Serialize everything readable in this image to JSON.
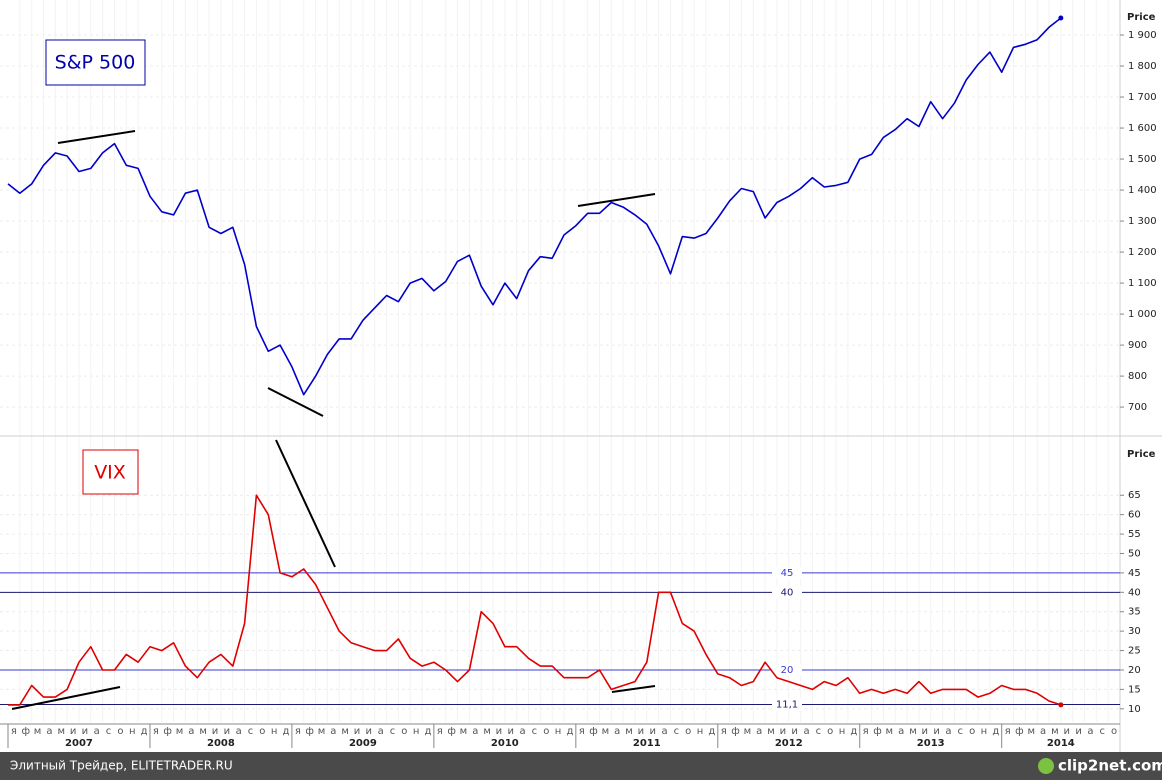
{
  "chart_data": [
    {
      "type": "line",
      "x": [
        "2007-01",
        "2007-02",
        "2007-03",
        "2007-04",
        "2007-05",
        "2007-06",
        "2007-07",
        "2007-08",
        "2007-09",
        "2007-10",
        "2007-11",
        "2007-12",
        "2008-01",
        "2008-02",
        "2008-03",
        "2008-04",
        "2008-05",
        "2008-06",
        "2008-07",
        "2008-08",
        "2008-09",
        "2008-10",
        "2008-11",
        "2008-12",
        "2009-01",
        "2009-02",
        "2009-03",
        "2009-04",
        "2009-05",
        "2009-06",
        "2009-07",
        "2009-08",
        "2009-09",
        "2009-10",
        "2009-11",
        "2009-12",
        "2010-01",
        "2010-02",
        "2010-03",
        "2010-04",
        "2010-05",
        "2010-06",
        "2010-07",
        "2010-08",
        "2010-09",
        "2010-10",
        "2010-11",
        "2010-12",
        "2011-01",
        "2011-02",
        "2011-03",
        "2011-04",
        "2011-05",
        "2011-06",
        "2011-07",
        "2011-08",
        "2011-09",
        "2011-10",
        "2011-11",
        "2011-12",
        "2012-01",
        "2012-02",
        "2012-03",
        "2012-04",
        "2012-05",
        "2012-06",
        "2012-07",
        "2012-08",
        "2012-09",
        "2012-10",
        "2012-11",
        "2012-12",
        "2013-01",
        "2013-02",
        "2013-03",
        "2013-04",
        "2013-05",
        "2013-06",
        "2013-07",
        "2013-08",
        "2013-09",
        "2013-10",
        "2013-11",
        "2013-12",
        "2014-01",
        "2014-02",
        "2014-03",
        "2014-04",
        "2014-05",
        "2014-06"
      ],
      "xlim": [
        "2007-01",
        "2014-11"
      ],
      "series": [
        {
          "name": "S&P 500",
          "color": "#0000cc",
          "values": [
            1420,
            1390,
            1420,
            1480,
            1520,
            1510,
            1460,
            1470,
            1520,
            1550,
            1480,
            1470,
            1380,
            1330,
            1320,
            1390,
            1400,
            1280,
            1260,
            1280,
            1160,
            960,
            880,
            900,
            830,
            740,
            800,
            870,
            920,
            920,
            980,
            1020,
            1060,
            1040,
            1100,
            1115,
            1075,
            1105,
            1170,
            1190,
            1090,
            1030,
            1100,
            1050,
            1140,
            1185,
            1180,
            1255,
            1285,
            1325,
            1325,
            1360,
            1345,
            1320,
            1290,
            1220,
            1130,
            1250,
            1245,
            1260,
            1310,
            1365,
            1405,
            1395,
            1310,
            1360,
            1380,
            1405,
            1440,
            1410,
            1415,
            1425,
            1500,
            1515,
            1570,
            1595,
            1630,
            1605,
            1685,
            1630,
            1680,
            1755,
            1805,
            1845,
            1780,
            1860,
            1870,
            1885,
            1925,
            1955
          ]
        }
      ],
      "ylim": [
        610,
        2013
      ],
      "yticks": [
        700,
        800,
        900,
        {
          "value": 1000,
          "label": "1 000"
        },
        {
          "value": 1100,
          "label": "1 100"
        },
        {
          "value": 1200,
          "label": "1 200"
        },
        {
          "value": 1300,
          "label": "1 300"
        },
        {
          "value": 1400,
          "label": "1 400"
        },
        {
          "value": 1500,
          "label": "1 500"
        },
        {
          "value": 1600,
          "label": "1 600"
        },
        {
          "value": 1700,
          "label": "1 700"
        },
        {
          "value": 1800,
          "label": "1 800"
        },
        {
          "value": 1900,
          "label": "1 900"
        }
      ],
      "y_axis_title": "Price",
      "grid": true
    },
    {
      "type": "line",
      "x": [
        "2007-01",
        "2007-02",
        "2007-03",
        "2007-04",
        "2007-05",
        "2007-06",
        "2007-07",
        "2007-08",
        "2007-09",
        "2007-10",
        "2007-11",
        "2007-12",
        "2008-01",
        "2008-02",
        "2008-03",
        "2008-04",
        "2008-05",
        "2008-06",
        "2008-07",
        "2008-08",
        "2008-09",
        "2008-10",
        "2008-11",
        "2008-12",
        "2009-01",
        "2009-02",
        "2009-03",
        "2009-04",
        "2009-05",
        "2009-06",
        "2009-07",
        "2009-08",
        "2009-09",
        "2009-10",
        "2009-11",
        "2009-12",
        "2010-01",
        "2010-02",
        "2010-03",
        "2010-04",
        "2010-05",
        "2010-06",
        "2010-07",
        "2010-08",
        "2010-09",
        "2010-10",
        "2010-11",
        "2010-12",
        "2011-01",
        "2011-02",
        "2011-03",
        "2011-04",
        "2011-05",
        "2011-06",
        "2011-07",
        "2011-08",
        "2011-09",
        "2011-10",
        "2011-11",
        "2011-12",
        "2012-01",
        "2012-02",
        "2012-03",
        "2012-04",
        "2012-05",
        "2012-06",
        "2012-07",
        "2012-08",
        "2012-09",
        "2012-10",
        "2012-11",
        "2012-12",
        "2013-01",
        "2013-02",
        "2013-03",
        "2013-04",
        "2013-05",
        "2013-06",
        "2013-07",
        "2013-08",
        "2013-09",
        "2013-10",
        "2013-11",
        "2013-12",
        "2014-01",
        "2014-02",
        "2014-03",
        "2014-04",
        "2014-05",
        "2014-06"
      ],
      "xlim": [
        "2007-01",
        "2014-11"
      ],
      "series": [
        {
          "name": "VIX",
          "color": "#e00000",
          "values": [
            11,
            11,
            16,
            13,
            13,
            15,
            22,
            26,
            20,
            20,
            24,
            22,
            26,
            25,
            27,
            21,
            18,
            22,
            24,
            21,
            32,
            65,
            60,
            45,
            44,
            46,
            42,
            36,
            30,
            27,
            26,
            25,
            25,
            28,
            23,
            21,
            22,
            20,
            17,
            20,
            35,
            32,
            26,
            26,
            23,
            21,
            21,
            18,
            18,
            18,
            20,
            15,
            16,
            17,
            22,
            40,
            40,
            32,
            30,
            24,
            19,
            18,
            16,
            17,
            22,
            18,
            17,
            16,
            15,
            17,
            16,
            18,
            14,
            15,
            14,
            15,
            14,
            17,
            14,
            15,
            15,
            15,
            13,
            14,
            16,
            15,
            15,
            14,
            12,
            11
          ]
        }
      ],
      "ylim": [
        6.6,
        80
      ],
      "yticks": [
        10,
        15,
        20,
        25,
        30,
        35,
        40,
        45,
        50,
        55,
        60,
        65
      ],
      "y_axis_title": "Price",
      "hlines": [
        {
          "value": 45,
          "color": "#3a3ad8"
        },
        {
          "value": 40,
          "color": "#1a1a70"
        },
        {
          "value": 20,
          "color": "#3a3ad8"
        },
        {
          "value": 11.1,
          "label": "11,1",
          "color": "#1a1a70"
        }
      ],
      "grid": true
    }
  ],
  "x_axis": {
    "month_labels": [
      "я",
      "ф",
      "м",
      "а",
      "м",
      "и",
      "и",
      "а",
      "с",
      "о",
      "н",
      "д"
    ],
    "year_labels": [
      "2007",
      "2008",
      "2009",
      "2010",
      "2011",
      "2012",
      "2013",
      "2014"
    ]
  },
  "footer": {
    "source": "Элитный Трейдер, ELITETRADER.RU",
    "logo": "clip2net.com"
  }
}
